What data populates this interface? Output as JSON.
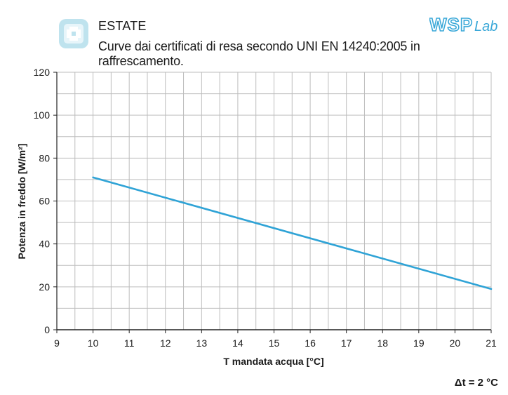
{
  "header": {
    "title": "ESTATE",
    "subtitle": "Curve dai certificati di resa secondo UNI EN 14240:2005 in raffrescamento.",
    "icon": "snowflake-tile-icon",
    "brand": {
      "part1": "WSP",
      "part2": "Lab",
      "color": "#3aa8d8"
    }
  },
  "note": "Δt = 2 °C",
  "chart_data": {
    "type": "line",
    "title": "",
    "xlabel": "T mandata acqua [°C]",
    "ylabel": "Potenza in freddo [W/m²]",
    "xlim": [
      9,
      21
    ],
    "ylim": [
      0,
      120
    ],
    "xticks": [
      9,
      10,
      11,
      12,
      13,
      14,
      15,
      16,
      17,
      18,
      19,
      20,
      21
    ],
    "yticks": [
      0,
      20,
      40,
      60,
      80,
      100,
      120
    ],
    "grid": true,
    "series": [
      {
        "color": "#2fa3d6",
        "x": [
          10,
          21
        ],
        "y": [
          71,
          19
        ]
      }
    ]
  }
}
